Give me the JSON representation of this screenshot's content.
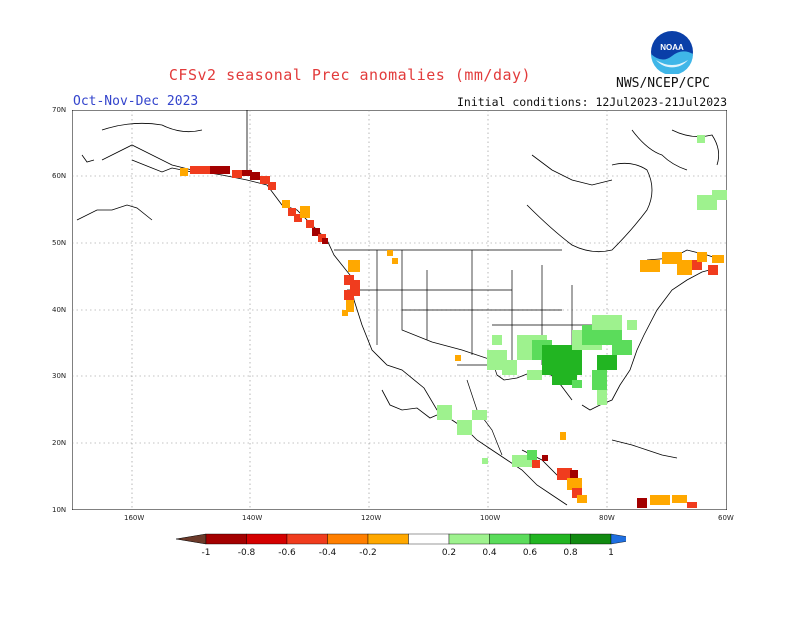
{
  "header": {
    "title": "CFSv2 seasonal Prec anomalies (mm/day)",
    "season": "Oct-Nov-Dec 2023",
    "initial_conditions": "Initial conditions: 12Jul2023-21Jul2023",
    "agency": "NWS/NCEP/CPC",
    "logo_text": "NOAA"
  },
  "map": {
    "lat_labels": [
      "70N",
      "60N",
      "50N",
      "40N",
      "30N",
      "20N",
      "10N"
    ],
    "lon_labels": [
      "160W",
      "140W",
      "120W",
      "100W",
      "80W",
      "60W"
    ]
  },
  "legend": {
    "labels": [
      "-1",
      "-0.8",
      "-0.6",
      "-0.4",
      "-0.2",
      "0.2",
      "0.4",
      "0.6",
      "0.8",
      "1"
    ],
    "colors": [
      "#6b3a2a",
      "#a30000",
      "#d40000",
      "#f03c1e",
      "#ff7f00",
      "#ffa800",
      "#ffffff",
      "#9ef28e",
      "#5bdc5b",
      "#22b522",
      "#118a11",
      "#1f6fe0"
    ]
  },
  "colors": {
    "title": "#e23b3b",
    "season": "#3344cc",
    "dry_orange": "#ffa800",
    "dry_red": "#f03c1e",
    "dry_dark": "#a30000",
    "wet_light": "#9ef28e",
    "wet_mid": "#5bdc5b",
    "wet_dark": "#22b522"
  }
}
